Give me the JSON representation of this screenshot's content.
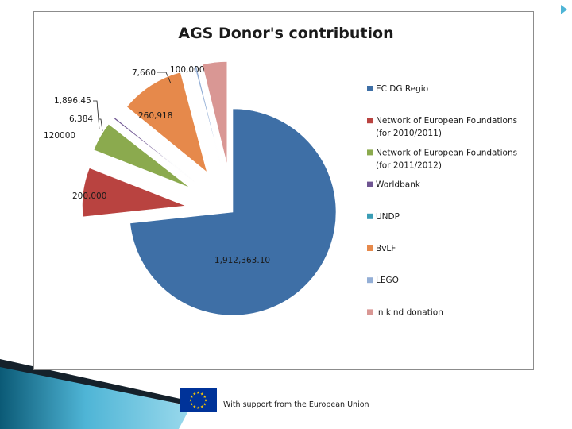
{
  "chart_data": {
    "type": "pie",
    "title": "AGS Donor's contribution",
    "legend_position": "right",
    "slices": [
      {
        "name": "EC DG Regio",
        "value": 1912363.1,
        "label": "1,912,363.10",
        "color": "#3E6FA6"
      },
      {
        "name": "Network of European Foundations (for 2010/2011)",
        "legend_lines": [
          "Network of European Foundations",
          "(for 2010/2011)"
        ],
        "value": 200000,
        "label": "200,000",
        "color": "#B94340"
      },
      {
        "name": "Network of European Foundations (for 2011/2012)",
        "legend_lines": [
          "Network of European Foundations",
          "(for 2011/2012)"
        ],
        "value": 120000,
        "label": "120000",
        "color": "#8BAA4E"
      },
      {
        "name": "Worldbank",
        "value": 6384,
        "label": "6,384",
        "color": "#6F5592"
      },
      {
        "name": "UNDP",
        "value": 1896.45,
        "label": "1,896.45",
        "color": "#3A9DB5"
      },
      {
        "name": "BvLF",
        "value": 260918,
        "label": "260,918",
        "color": "#E6894B"
      },
      {
        "name": "LEGO",
        "value": 7660,
        "label": "7,660",
        "color": "#94AFD6"
      },
      {
        "name": " in kind donation",
        "value": 100000,
        "label": "100,000",
        "color": "#D99794"
      }
    ]
  },
  "footer": {
    "eu_caption": "With support from the European Union",
    "flag_color": "#003399",
    "star_color": "#FFCC00"
  }
}
